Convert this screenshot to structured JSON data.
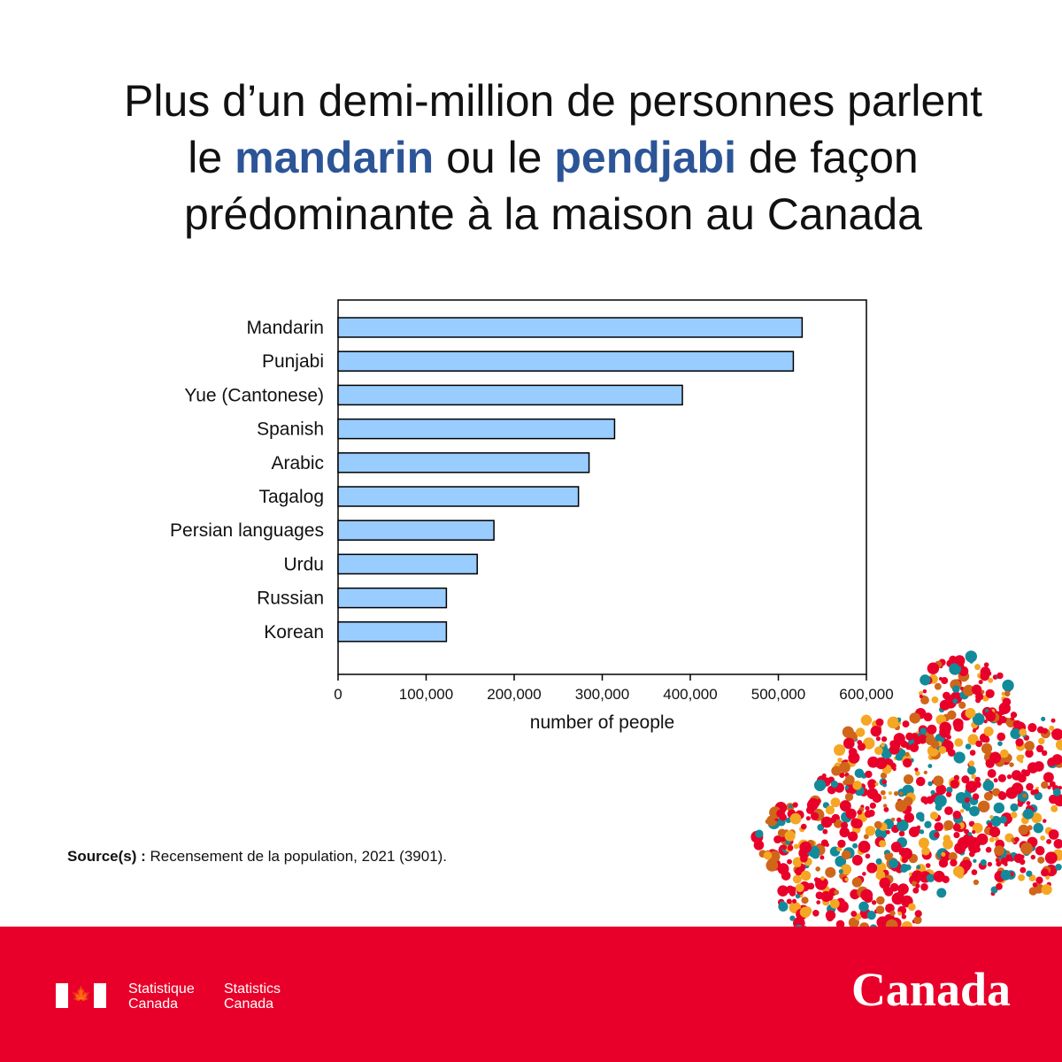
{
  "title": {
    "line1": "Plus d’un demi-million de personnes parlent",
    "line2_pre": "le ",
    "line2_hl1": "mandarin",
    "line2_mid": " ou le ",
    "line2_hl2": "pendjabi",
    "line2_post": " de façon",
    "line3": "prédominante à la maison au Canada"
  },
  "chart_data": {
    "type": "bar",
    "orientation": "horizontal",
    "categories": [
      "Mandarin",
      "Punjabi",
      "Yue (Cantonese)",
      "Spanish",
      "Arabic",
      "Tagalog",
      "Persian languages",
      "Urdu",
      "Russian",
      "Korean"
    ],
    "values": [
      527000,
      517000,
      391000,
      314000,
      285000,
      273000,
      177000,
      158000,
      123000,
      123000
    ],
    "xlabel": "number of people",
    "ylabel": "",
    "xlim": [
      0,
      600000
    ],
    "xticks": [
      "0",
      "100,000",
      "200,000",
      "300,000",
      "400,000",
      "500,000",
      "600,000"
    ],
    "bar_color": "#99ccff",
    "grid": false
  },
  "source": {
    "label": "Source(s) :",
    "text": " Recensement de la population, 2021 (3901)."
  },
  "footer": {
    "sig_fr_1": "Statistique",
    "sig_fr_2": "Canada",
    "sig_en_1": "Statistics",
    "sig_en_2": "Canada",
    "flag_icon": "canada-flag-icon",
    "wordmark": "Canada",
    "color": "#e8002a"
  }
}
